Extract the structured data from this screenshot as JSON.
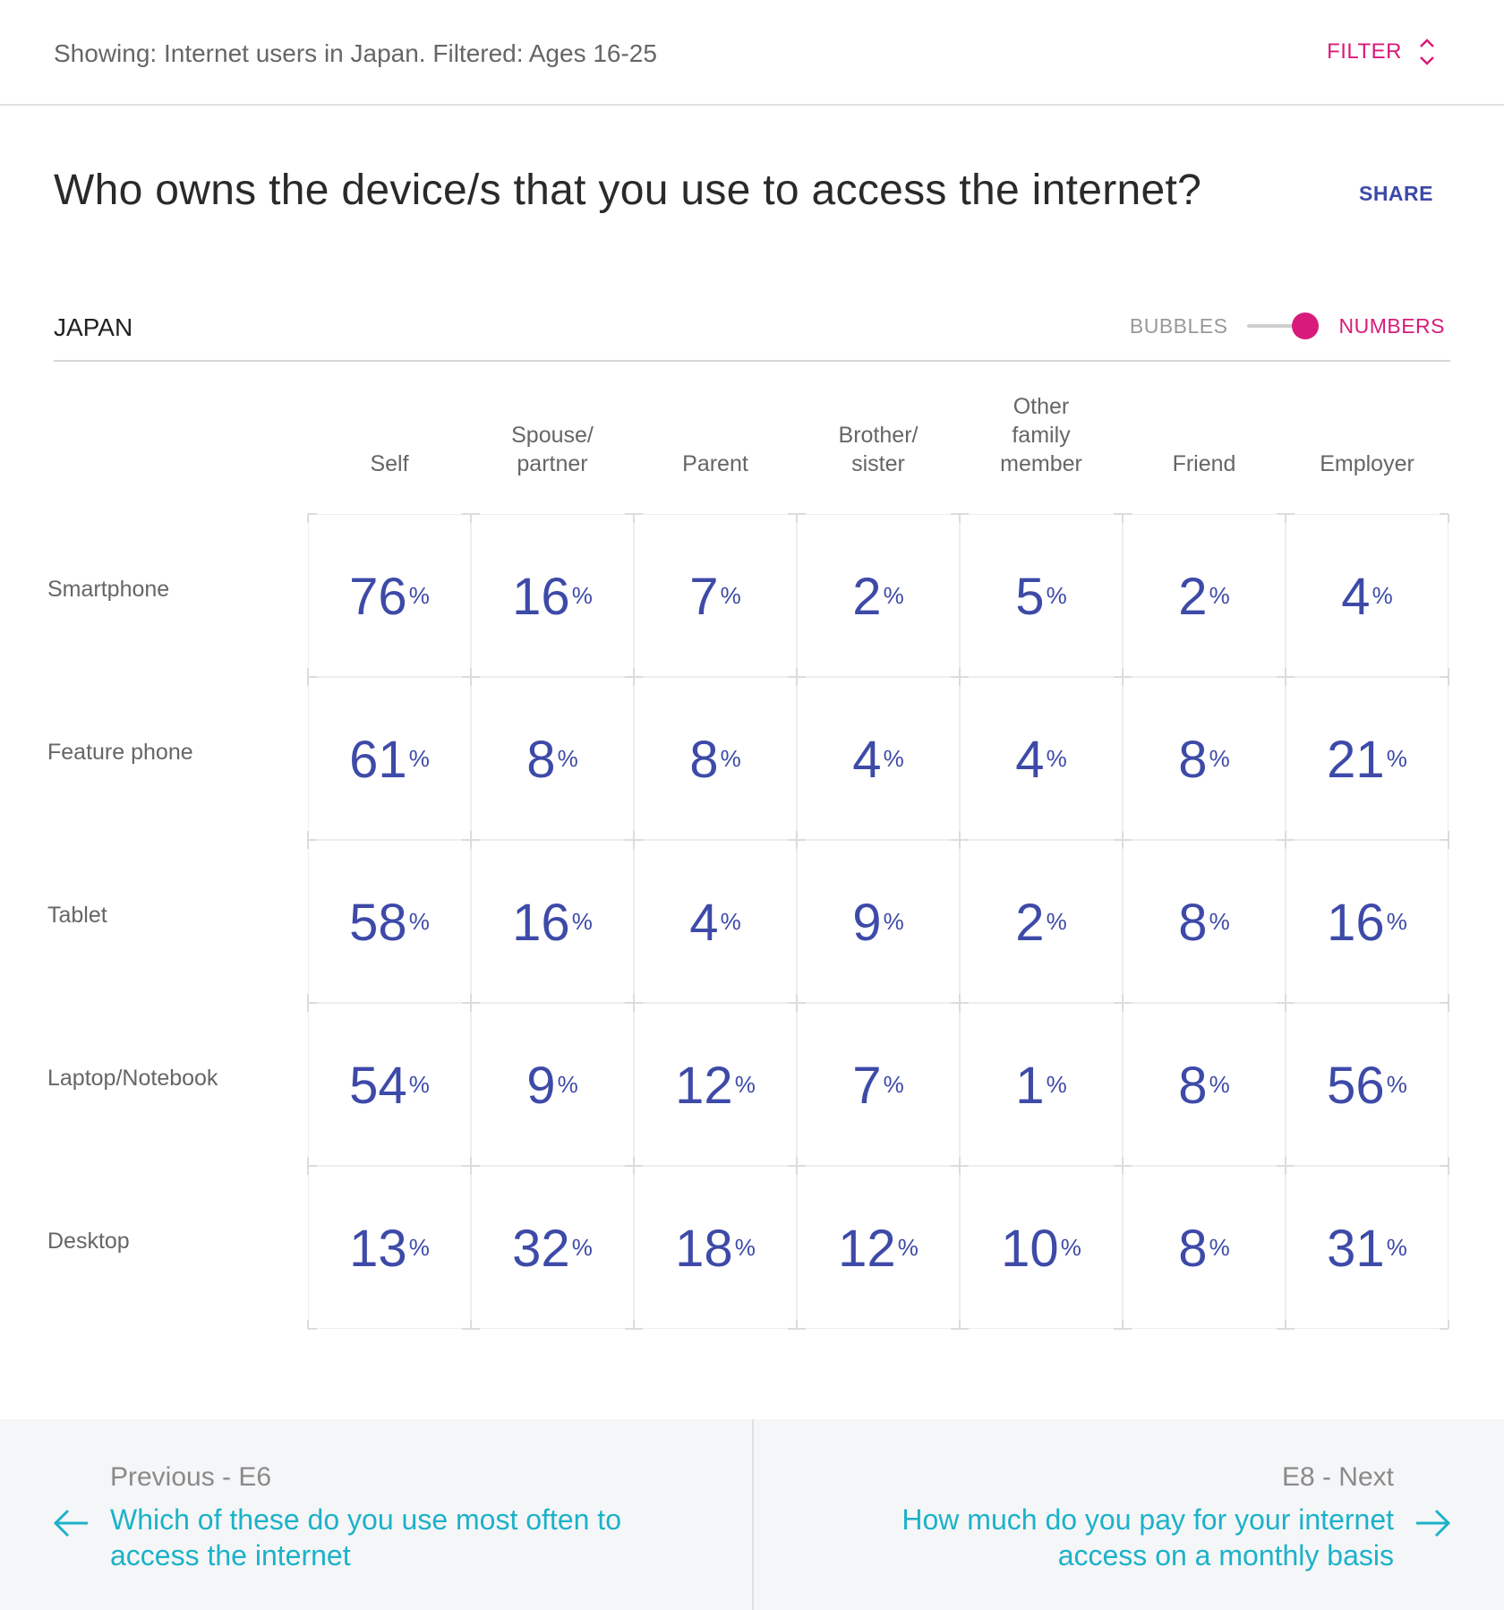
{
  "header": {
    "showing": "Showing: Internet users in Japan. Filtered: Ages 16-25",
    "filter_label": "FILTER"
  },
  "question": {
    "title": "Who owns the device/s that you use to access the internet?",
    "share_label": "SHARE"
  },
  "country": "JAPAN",
  "view_toggle": {
    "left_label": "BUBBLES",
    "right_label": "NUMBERS",
    "selected": "NUMBERS"
  },
  "colors": {
    "accent": "#d81b7a",
    "value": "#3d4aa8",
    "link": "#1cb2c9"
  },
  "table": {
    "columns": [
      "Self",
      "Spouse/ partner",
      "Parent",
      "Brother/ sister",
      "Other family member",
      "Friend",
      "Employer"
    ],
    "columns_display": [
      [
        "Self"
      ],
      [
        "Spouse/",
        "partner"
      ],
      [
        "Parent"
      ],
      [
        "Brother/",
        "sister"
      ],
      [
        "Other",
        "family",
        "member"
      ],
      [
        "Friend"
      ],
      [
        "Employer"
      ]
    ],
    "unit": "%",
    "rows": [
      {
        "label": "Smartphone",
        "values": [
          76,
          16,
          7,
          2,
          5,
          2,
          4
        ]
      },
      {
        "label": "Feature phone",
        "values": [
          61,
          8,
          8,
          4,
          4,
          8,
          21
        ]
      },
      {
        "label": "Tablet",
        "values": [
          58,
          16,
          4,
          9,
          2,
          8,
          16
        ]
      },
      {
        "label": "Laptop/Notebook",
        "values": [
          54,
          9,
          12,
          7,
          1,
          8,
          56
        ]
      },
      {
        "label": "Desktop",
        "values": [
          13,
          32,
          18,
          12,
          10,
          8,
          31
        ]
      }
    ]
  },
  "nav": {
    "prev_label": "Previous - E6",
    "prev_title": "Which of these do you use most often to access the internet",
    "next_label": "E8 - Next",
    "next_title": "How much do you pay for your internet access on a monthly basis"
  },
  "icons": {
    "filter": "chevron-up-down-icon",
    "prev": "arrow-left-icon",
    "next": "arrow-right-icon"
  }
}
